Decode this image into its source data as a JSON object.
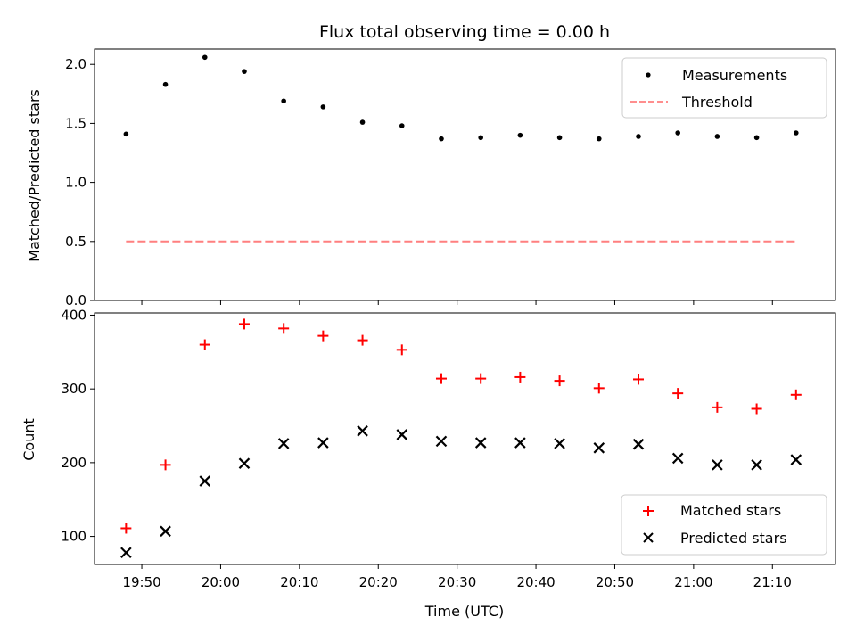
{
  "title": "Flux total observing time = 0.00 h",
  "x_axis": {
    "label": "Time (UTC)",
    "ticks": [
      "19:50",
      "20:00",
      "20:10",
      "20:20",
      "20:30",
      "20:40",
      "20:50",
      "21:00",
      "21:10"
    ]
  },
  "chart_data": [
    {
      "type": "scatter",
      "ylabel": "Matched/Predicted stars",
      "ylim": [
        0,
        2.13
      ],
      "yticks": [
        "0.0",
        "0.5",
        "1.0",
        "1.5",
        "2.0"
      ],
      "legend_position": "top-right",
      "x": [
        "19:48",
        "19:53",
        "19:58",
        "20:03",
        "20:08",
        "20:13",
        "20:18",
        "20:23",
        "20:28",
        "20:33",
        "20:38",
        "20:43",
        "20:48",
        "20:53",
        "20:58",
        "21:03",
        "21:08",
        "21:13"
      ],
      "series": [
        {
          "name": "Measurements",
          "marker": "dot",
          "color": "#000000",
          "values": [
            1.41,
            1.83,
            2.06,
            1.94,
            1.69,
            1.64,
            1.51,
            1.48,
            1.37,
            1.38,
            1.4,
            1.38,
            1.37,
            1.39,
            1.42,
            1.39,
            1.38,
            1.42
          ]
        },
        {
          "name": "Threshold",
          "marker": "dashed-line",
          "color": "#ff7f7f",
          "values": [
            0.5,
            0.5
          ]
        }
      ]
    },
    {
      "type": "scatter",
      "ylabel": "Count",
      "ylim": [
        62,
        403
      ],
      "yticks": [
        "100",
        "200",
        "300",
        "400"
      ],
      "legend_position": "bottom-right",
      "x": [
        "19:48",
        "19:53",
        "19:58",
        "20:03",
        "20:08",
        "20:13",
        "20:18",
        "20:23",
        "20:28",
        "20:33",
        "20:38",
        "20:43",
        "20:48",
        "20:53",
        "20:58",
        "21:03",
        "21:08",
        "21:13"
      ],
      "series": [
        {
          "name": "Matched stars",
          "marker": "plus",
          "color": "#ff0000",
          "values": [
            111,
            197,
            360,
            388,
            382,
            372,
            366,
            353,
            314,
            314,
            316,
            311,
            301,
            313,
            294,
            275,
            273,
            292
          ]
        },
        {
          "name": "Predicted stars",
          "marker": "x",
          "color": "#000000",
          "values": [
            78,
            107,
            175,
            199,
            226,
            227,
            243,
            238,
            229,
            227,
            227,
            226,
            220,
            225,
            206,
            197,
            197,
            204
          ]
        }
      ]
    }
  ]
}
